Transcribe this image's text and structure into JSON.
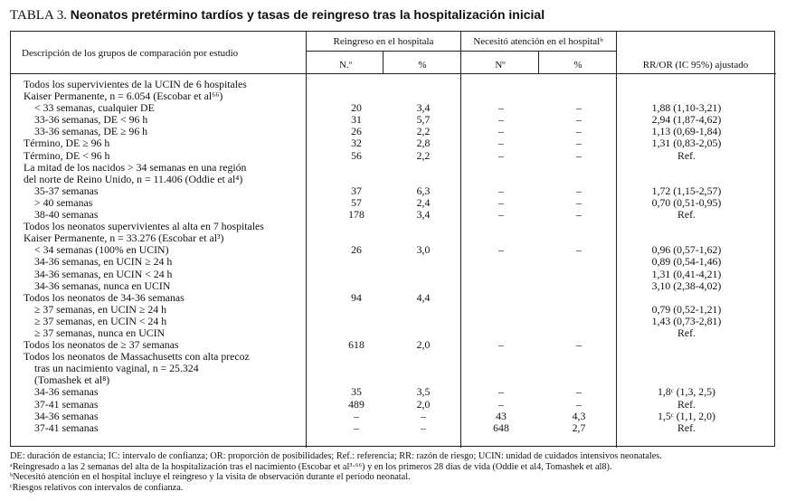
{
  "title": {
    "label": "TABLA 3.",
    "text": "Neonatos pretérmino tardíos y tasas de reingreso tras la hospitalización inicial"
  },
  "header": {
    "description": "Descripción de los grupos de comparación por estudio",
    "group1": "Reingreso en el hospitala",
    "group2": "Necesitó atención en el hospitalᵇ",
    "n1": "N.º",
    "p1": "%",
    "n2": "Nº",
    "p2": "%",
    "rr": "RR/OR (IC 95%) ajustado"
  },
  "rows": [
    {
      "desc": "Todos los supervivientes de la UCIN de 6 hospitales",
      "indent": false,
      "n": "",
      "p": "",
      "n2": "",
      "p2": "",
      "rr": ""
    },
    {
      "desc": "Kaiser Permanente, n = 6.054 (Escobar et al⁶⁶)",
      "indent": false,
      "n": "",
      "p": "",
      "n2": "",
      "p2": "",
      "rr": ""
    },
    {
      "desc": "< 33 semanas, cualquier DE",
      "indent": true,
      "n": "20",
      "p": "3,4",
      "n2": "–",
      "p2": "–",
      "rr": "1,88 (1,10-3,21)"
    },
    {
      "desc": "33-36 semanas, DE < 96 h",
      "indent": true,
      "n": "31",
      "p": "5,7",
      "n2": "–",
      "p2": "–",
      "rr": "2,94 (1,87-4,62)"
    },
    {
      "desc": "33-36 semanas, DE ≥ 96 h",
      "indent": true,
      "n": "26",
      "p": "2,2",
      "n2": "–",
      "p2": "–",
      "rr": "1,13 (0,69-1,84)"
    },
    {
      "desc": "Término, DE ≥ 96 h",
      "indent": false,
      "n": "32",
      "p": "2,8",
      "n2": "–",
      "p2": "–",
      "rr": "1,31 (0,83-2,05)"
    },
    {
      "desc": "Término, DE < 96 h",
      "indent": false,
      "n": "56",
      "p": "2,2",
      "n2": "–",
      "p2": "–",
      "rr": "Ref."
    },
    {
      "desc": "La mitad de los nacidos > 34 semanas en una región",
      "indent": false,
      "n": "",
      "p": "",
      "n2": "",
      "p2": "",
      "rr": ""
    },
    {
      "desc": "del norte de Reino Unido, n = 11.406 (Oddie et al⁴)",
      "indent": false,
      "n": "",
      "p": "",
      "n2": "",
      "p2": "",
      "rr": ""
    },
    {
      "desc": "35-37 semanas",
      "indent": true,
      "n": "37",
      "p": "6,3",
      "n2": "–",
      "p2": "–",
      "rr": "1,72 (1,15-2,57)"
    },
    {
      "desc": "> 40 semanas",
      "indent": true,
      "n": "57",
      "p": "2,4",
      "n2": "–",
      "p2": "–",
      "rr": "0,70 (0,51-0,95)"
    },
    {
      "desc": "38-40 semanas",
      "indent": true,
      "n": "178",
      "p": "3,4",
      "n2": "–",
      "p2": "–",
      "rr": "Ref."
    },
    {
      "desc": "Todos los neonatos supervivientes al alta en 7 hospitales",
      "indent": false,
      "n": "",
      "p": "",
      "n2": "",
      "p2": "",
      "rr": ""
    },
    {
      "desc": "Kaiser Permanente, n = 33.276 (Escobar et al³)",
      "indent": false,
      "n": "",
      "p": "",
      "n2": "",
      "p2": "",
      "rr": ""
    },
    {
      "desc": "< 34 semanas (100% en UCIN)",
      "indent": true,
      "n": "26",
      "p": "3,0",
      "n2": "–",
      "p2": "–",
      "rr": "0,96 (0,57-1,62)"
    },
    {
      "desc": "34-36 semanas, en UCIN ≥ 24 h",
      "indent": true,
      "n": "",
      "p": "",
      "n2": "",
      "p2": "",
      "rr": "0,89 (0,54-1,46)"
    },
    {
      "desc": "34-36 semanas, en UCIN < 24 h",
      "indent": true,
      "n": "",
      "p": "",
      "n2": "",
      "p2": "",
      "rr": "1,31 (0,41-4,21)"
    },
    {
      "desc": "34-36 semanas, nunca en UCIN",
      "indent": true,
      "n": "",
      "p": "",
      "n2": "",
      "p2": "",
      "rr": "3,10 (2,38-4,02)"
    },
    {
      "desc": "Todos los neonatos de 34-36 semanas",
      "indent": false,
      "n": "94",
      "p": "4,4",
      "n2": "",
      "p2": "",
      "rr": ""
    },
    {
      "desc": "≥ 37 semanas, en UCIN ≥ 24 h",
      "indent": true,
      "n": "",
      "p": "",
      "n2": "",
      "p2": "",
      "rr": "0,79 (0,52-1,21)"
    },
    {
      "desc": "≥ 37 semanas, en UCIN < 24 h",
      "indent": true,
      "n": "",
      "p": "",
      "n2": "",
      "p2": "",
      "rr": "1,43 (0,73-2,81)"
    },
    {
      "desc": "≥ 37 semanas, nunca en UCIN",
      "indent": true,
      "n": "",
      "p": "",
      "n2": "",
      "p2": "",
      "rr": "Ref."
    },
    {
      "desc": "Todos los neonatos de ≥ 37 semanas",
      "indent": false,
      "n": "618",
      "p": "2,0",
      "n2": "–",
      "p2": "–",
      "rr": ""
    },
    {
      "desc": "Todos los neonatos de Massachusetts con alta precoz",
      "indent": false,
      "n": "",
      "p": "",
      "n2": "",
      "p2": "",
      "rr": ""
    },
    {
      "desc": "tras un nacimiento vaginal, n = 25.324",
      "indent": true,
      "n": "",
      "p": "",
      "n2": "",
      "p2": "",
      "rr": ""
    },
    {
      "desc": "(Tomashek et al⁸)",
      "indent": true,
      "n": "",
      "p": "",
      "n2": "",
      "p2": "",
      "rr": ""
    },
    {
      "desc": "34-36 semanas",
      "indent": true,
      "n": "35",
      "p": "3,5",
      "n2": "–",
      "p2": "–",
      "rr": "1,8ᶜ (1,3, 2,5)"
    },
    {
      "desc": "37-41 semanas",
      "indent": true,
      "n": "489",
      "p": "2,0",
      "n2": "–",
      "p2": "–",
      "rr": "Ref."
    },
    {
      "desc": "34-36 semanas",
      "indent": true,
      "n": "–",
      "p": "–",
      "n2": "43",
      "p2": "4,3",
      "rr": "1,5ᶜ (1,1, 2,0)"
    },
    {
      "desc": "37-41 semanas",
      "indent": true,
      "n": "–",
      "p": "–",
      "n2": "648",
      "p2": "2,7",
      "rr": "Ref."
    }
  ],
  "footnotes": [
    "DE: duración de estancia; IC: intervalo de confianza; OR: proporción de posibilidades; Ref.: referencia; RR: razón de riesgo; UCIN: unidad de cuidados intensivos neonatales.",
    "ᵃReingresado a las 2 semanas del alta de la hospitalización tras el nacimiento (Escobar et al³·⁶⁶) y en los primeros 28 días de vida (Oddie et al4, Tomashek et al8).",
    "ᵇNecesitó atención en el hospital incluye el reingreso y la visita de observación durante el período neonatal.",
    "ᶜRiesgos relativos con intervalos de confianza."
  ]
}
